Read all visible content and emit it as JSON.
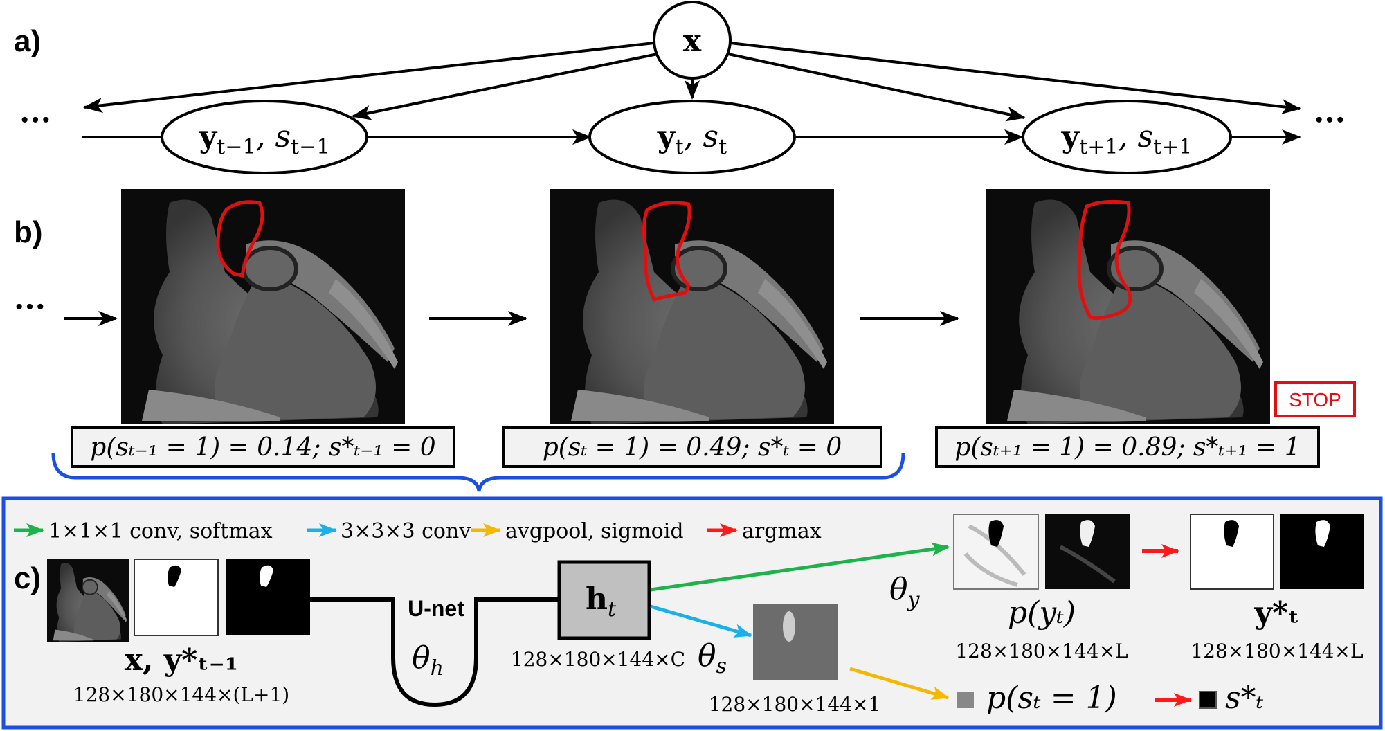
{
  "panels": {
    "a": "a)",
    "b": "b)",
    "c": "c)"
  },
  "graph": {
    "top_node": "x",
    "nodes": [
      {
        "label": "y",
        "sub": "t−1",
        "label2": ", s",
        "sub2": "t−1"
      },
      {
        "label": "y",
        "sub": "t",
        "label2": ", s",
        "sub2": "t"
      },
      {
        "label": "y",
        "sub": "t+1",
        "label2": ", s",
        "sub2": "t+1"
      }
    ],
    "ellipsis": "···"
  },
  "sequence": {
    "ellipsis": "···",
    "captions": [
      "p(sₜ₋₁ = 1) = 0.14; s*ₜ₋₁ = 0",
      "p(sₜ = 1) = 0.49; s*ₜ = 0",
      "p(sₜ₊₁ = 1) = 0.89; s*ₜ₊₁ = 1"
    ],
    "stop_label": "STOP"
  },
  "network": {
    "legend": [
      {
        "color": "#1db34a",
        "text": "1×1×1 conv, softmax"
      },
      {
        "color": "#1ab0e8",
        "text": "3×3×3 conv"
      },
      {
        "color": "#f5b800",
        "text": "avgpool, sigmoid"
      },
      {
        "color": "#ff1a1a",
        "text": "argmax"
      }
    ],
    "input_label": "x, y*ₜ₋₁",
    "input_dims": "128×180×144×(L+1)",
    "unet_label": "U-net",
    "unet_param": "θ",
    "unet_param_sub": "h",
    "hidden_label": "h",
    "hidden_sub": "t",
    "hidden_dims": "128×180×144×C",
    "theta_y": "θ",
    "theta_y_sub": "y",
    "theta_s": "θ",
    "theta_s_sub": "s",
    "stop_map_dims": "128×180×144×1",
    "prob_y_label": "p(yₜ)",
    "prob_y_dims": "128×180×144×L",
    "seg_label": "y*ₜ",
    "seg_dims": "128×180×144×L",
    "stop_prob_label": "p(sₜ = 1)",
    "stop_decision_label": "s*ₜ"
  },
  "colors": {
    "panel_border": "#1a4fe0",
    "panel_bg": "#f2f2f2",
    "contour": "#e01010",
    "stop": "#e01010"
  }
}
